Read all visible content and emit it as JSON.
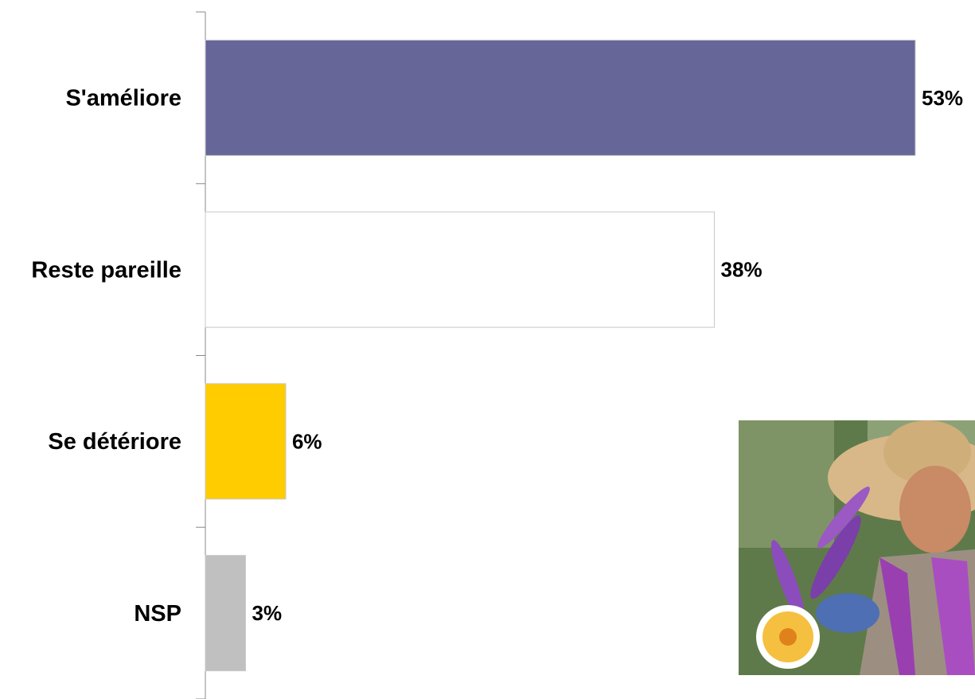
{
  "chart_data": {
    "type": "bar",
    "orientation": "horizontal",
    "categories": [
      "S'améliore",
      "Reste pareille",
      "Se détériore",
      "NSP"
    ],
    "values": [
      53,
      38,
      6,
      3
    ],
    "value_labels": [
      "53%",
      "38%",
      "6%",
      "3%"
    ],
    "colors": [
      "#666699",
      "#ffffff",
      "#ffcc00",
      "#c0c0c0"
    ]
  }
}
